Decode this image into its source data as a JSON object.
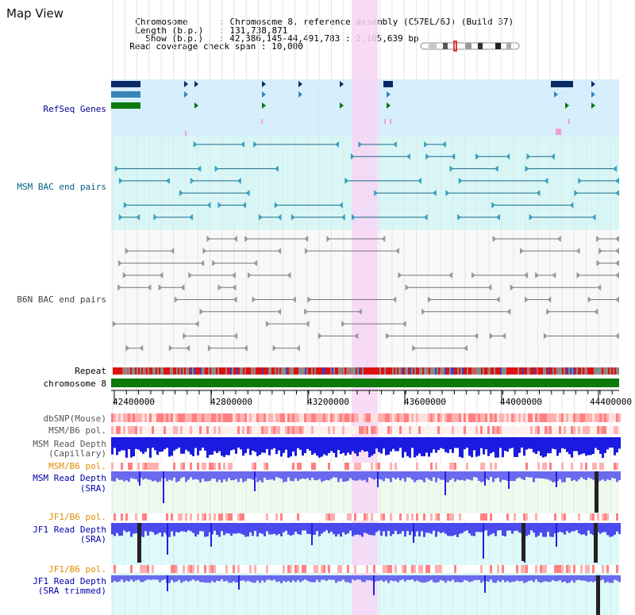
{
  "title": "Map View",
  "info": {
    "chromosome_key": "Chromosome",
    "chromosome_val": "Chromosome 8, reference assembly (C57BL/6J) (Build 37)",
    "length_key": "Length (b.p.)",
    "length_val": "131,738,871",
    "show_key": "Show (b.p.)",
    "show_val": "42,386,145-44,491,783 : 2,105,639 bp",
    "span_key": "Read coverage check span",
    "span_val": "10,000"
  },
  "tracks": {
    "refseq": "RefSeq Genes",
    "msm_bac": "MSM BAC end pairs",
    "b6n_bac": "B6N BAC end pairs",
    "repeat": "Repeat",
    "chromosome": "chromosome 8",
    "dbsnp": "dbSNP(Mouse)",
    "msm_b6_pol_1": "MSM/B6 pol.",
    "msm_depth_cap_1": "MSM Read Depth",
    "msm_depth_cap_2": "(Capillary)",
    "msm_b6_pol_2": "MSM/B6 pol.",
    "msm_depth_sra_1": "MSM Read Depth",
    "msm_depth_sra_2": "(SRA)",
    "jf1_b6_pol_1": "JF1/B6 pol.",
    "jf1_depth_sra_1": "JF1 Read Depth",
    "jf1_depth_sra_2": "(SRA)",
    "jf1_b6_pol_2": "JF1/B6 pol.",
    "jf1_depth_trim_1": "JF1 Read Depth",
    "jf1_depth_trim_2": "(SRA trimmed)"
  },
  "axis": {
    "ticks": [
      "42400000",
      "42800000",
      "43200000",
      "43600000",
      "44000000",
      "44400000"
    ]
  },
  "colors": {
    "refseq_label": "#00008b",
    "msm_label": "#006080",
    "b6n_label": "#444444",
    "orange_label": "#e08a00",
    "blue_label": "#0000aa",
    "highlight": "#f7d6f5",
    "refseq_bg": "#d6efff",
    "msm_bg": "#d8f6f6",
    "chromosome_bar": "#0a7a0a"
  }
}
